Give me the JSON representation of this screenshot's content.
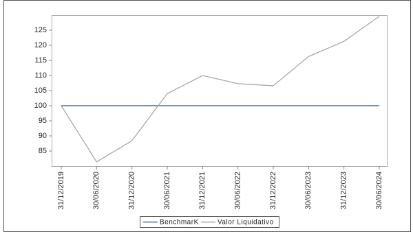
{
  "chart_data": {
    "type": "line",
    "categories": [
      "31/12/2019",
      "30/06/2020",
      "31/12/2020",
      "30/06/2021",
      "31/12/2021",
      "30/06/2022",
      "31/12/2022",
      "30/06/2023",
      "31/12/2023",
      "30/06/2024"
    ],
    "series": [
      {
        "name": "BenchmarK",
        "color": "#4a7290",
        "values": [
          100,
          100,
          100,
          100,
          100,
          100,
          100,
          100,
          100,
          100
        ]
      },
      {
        "name": "Valor Liquidativo",
        "color": "#a6a6a6",
        "values": [
          100,
          81.4,
          88.4,
          104,
          110,
          107.3,
          106.6,
          116.3,
          121.3,
          129.6
        ]
      }
    ],
    "ylim": [
      80,
      130
    ],
    "yticks": [
      85,
      90,
      95,
      100,
      105,
      110,
      115,
      120,
      125
    ],
    "legend": "bottom"
  }
}
